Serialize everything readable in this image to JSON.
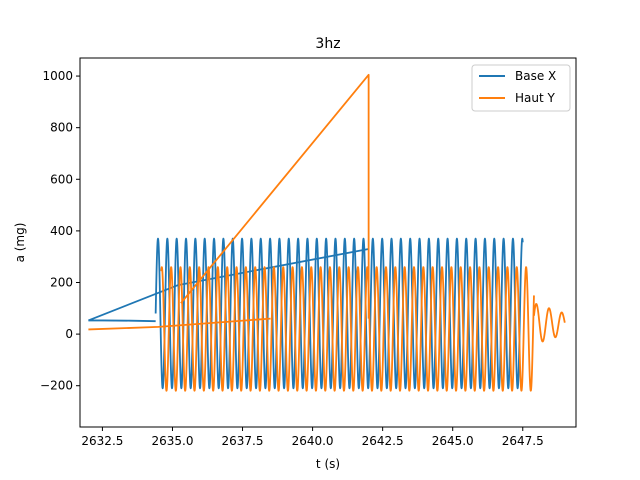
{
  "chart_data": {
    "type": "line",
    "title": "3hz",
    "xlabel": "t (s)",
    "ylabel": "a (mg)",
    "xlim": [
      2631.7,
      2649.4
    ],
    "ylim": [
      -360,
      1070
    ],
    "xticks": [
      2632.5,
      2635.0,
      2637.5,
      2640.0,
      2642.5,
      2645.0,
      2647.5
    ],
    "xtick_labels": [
      "2632.5",
      "2635.0",
      "2637.5",
      "2640.0",
      "2642.5",
      "2645.0",
      "2647.5"
    ],
    "yticks": [
      -200,
      0,
      200,
      400,
      600,
      800,
      1000
    ],
    "ytick_labels": [
      "−200",
      "0",
      "200",
      "400",
      "600",
      "800",
      "1000"
    ],
    "grid": false,
    "legend_position": "top-right",
    "series": [
      {
        "name": "Base X",
        "color": "#1f77b4",
        "segments": [
          {
            "kind": "points",
            "points": [
              [
                2634.4,
                50
              ],
              [
                2633.5,
                52
              ],
              [
                2632.5,
                53
              ],
              [
                2632.0,
                53
              ]
            ]
          },
          {
            "kind": "points",
            "points": [
              [
                2632.0,
                53
              ],
              [
                2635.2,
                190
              ],
              [
                2642.0,
                330
              ]
            ]
          },
          {
            "kind": "wave",
            "t0": 2634.4,
            "t1": 2647.5,
            "freq": 3.0,
            "center": 80,
            "amp": 290,
            "phase": 0
          }
        ]
      },
      {
        "name": "Haut Y",
        "color": "#ff7f0e",
        "segments": [
          {
            "kind": "points",
            "points": [
              [
                2632.0,
                18
              ],
              [
                2634.5,
                28
              ],
              [
                2638.5,
                60
              ]
            ]
          },
          {
            "kind": "points",
            "points": [
              [
                2635.3,
                120
              ],
              [
                2642.0,
                1005
              ],
              [
                2642.0,
                60
              ]
            ]
          },
          {
            "kind": "wave",
            "t0": 2634.6,
            "t1": 2647.9,
            "freq": 3.0,
            "center": 20,
            "amp": 240,
            "phase": 1.2
          },
          {
            "kind": "decay",
            "t0": 2647.9,
            "t1": 2649.0,
            "freq": 2.2,
            "center": 40,
            "amp": 80,
            "phase": 0.4
          }
        ]
      }
    ]
  }
}
